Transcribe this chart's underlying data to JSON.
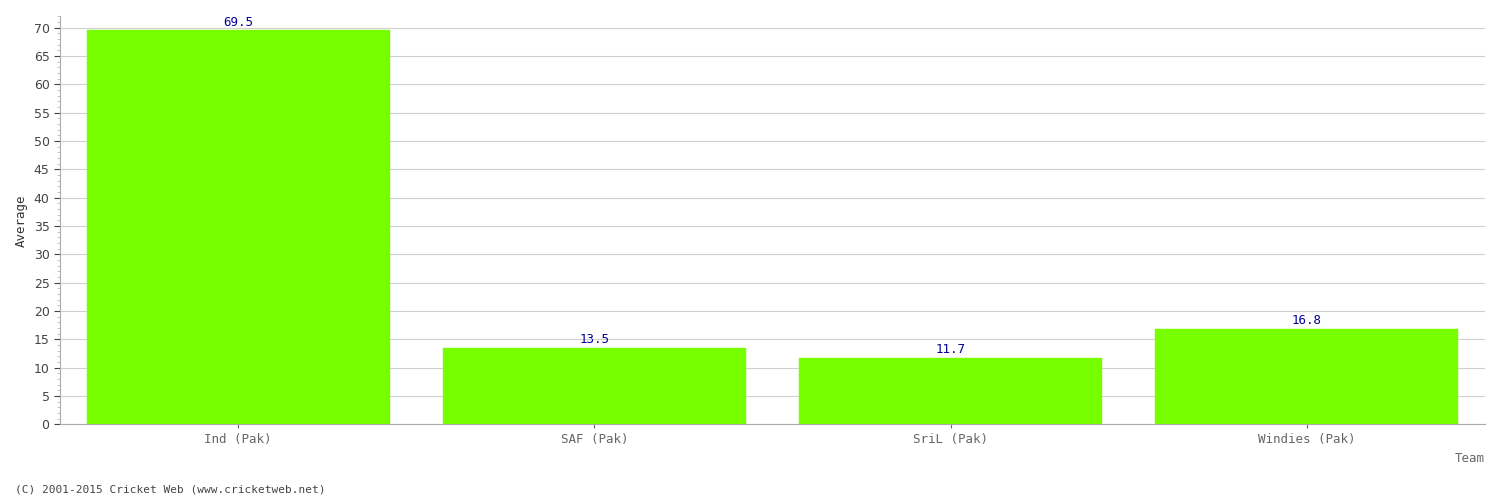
{
  "categories": [
    "Ind (Pak)",
    "SAF (Pak)",
    "SriL (Pak)",
    "Windies (Pak)"
  ],
  "values": [
    69.5,
    13.5,
    11.7,
    16.8
  ],
  "bar_color": "#77ff00",
  "bar_edge_color": "#77ff00",
  "value_color": "#000099",
  "ylabel": "Average",
  "xlabel": "Team",
  "ylim": [
    0,
    72
  ],
  "yticks_major": [
    0,
    5,
    10,
    15,
    20,
    25,
    30,
    35,
    40,
    45,
    50,
    55,
    60,
    65,
    70
  ],
  "grid_color": "#d0d0d0",
  "background_color": "#ffffff",
  "value_fontsize": 9,
  "tick_label_fontsize": 9,
  "ylabel_fontsize": 9,
  "xlabel_fontsize": 9,
  "footer_text": "(C) 2001-2015 Cricket Web (www.cricketweb.net)",
  "bar_width": 0.85,
  "xlim_left": -0.5,
  "xlim_right": 3.5
}
